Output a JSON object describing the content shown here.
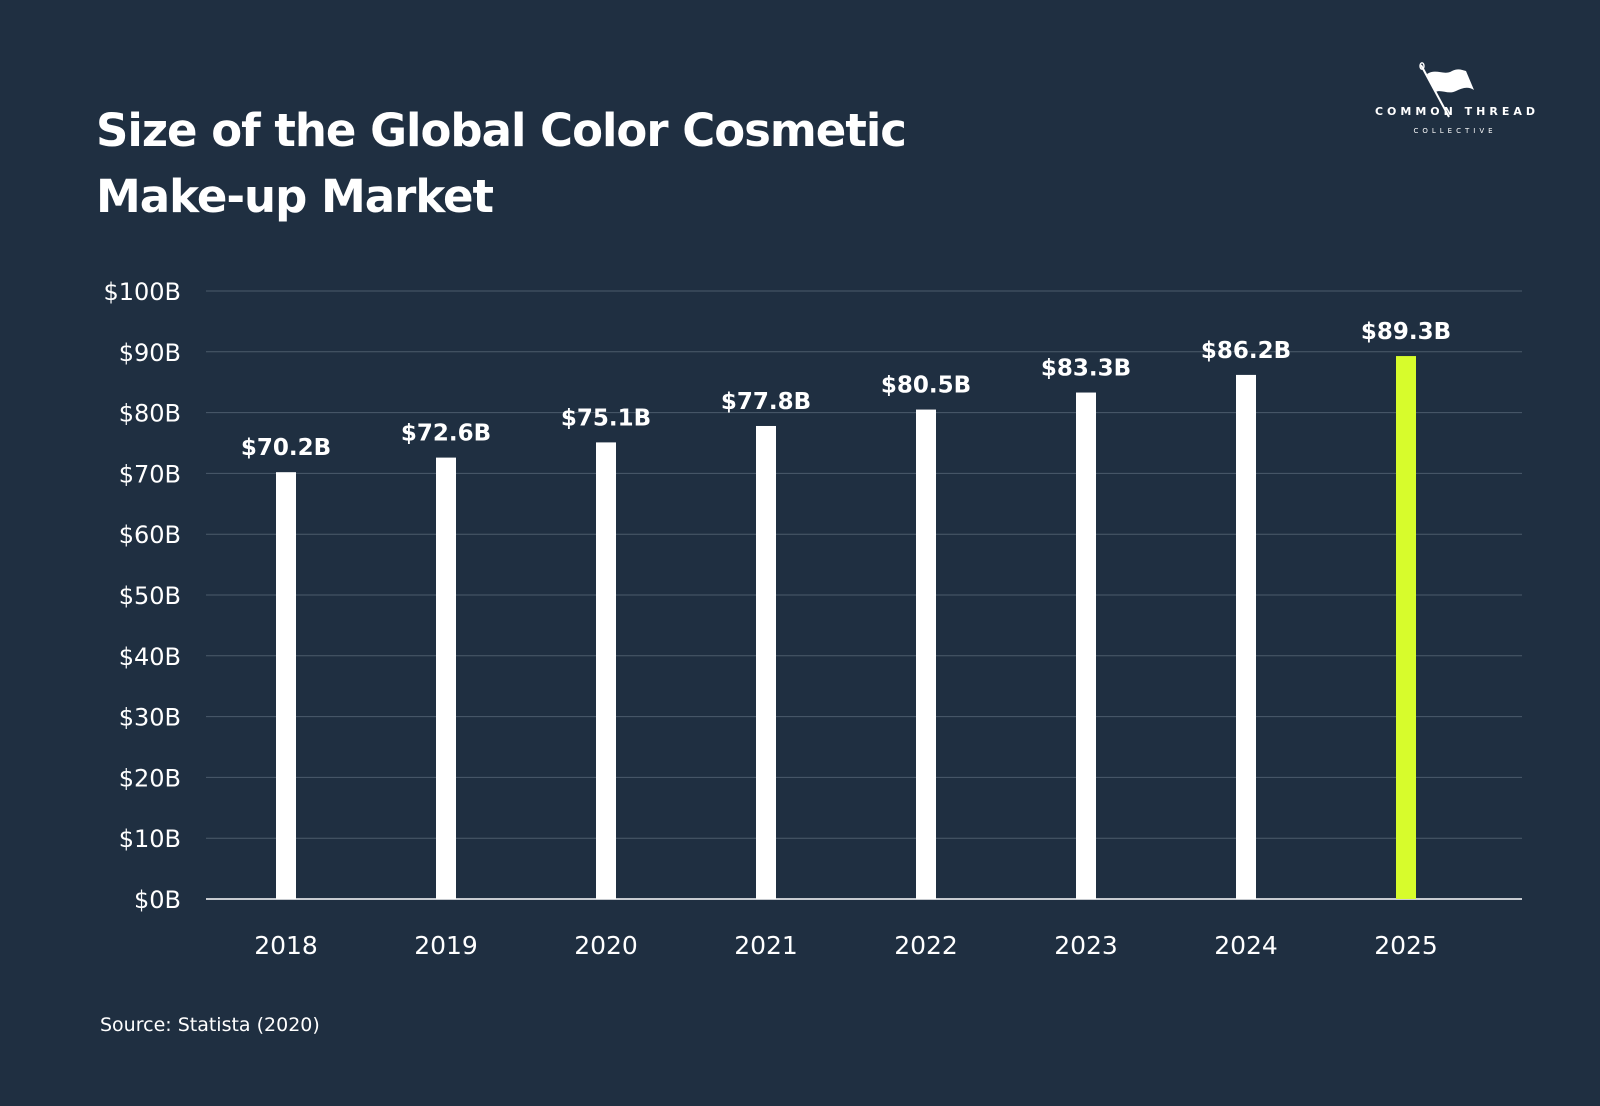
{
  "header": {
    "title_line1": "Size of the Global Color Cosmetic",
    "title_line2": "Make-up Market"
  },
  "brand": {
    "name": "COMMON THREAD",
    "sub": "COLLECTIVE",
    "icon": "flag-needle-icon"
  },
  "footer": {
    "source": "Source: Statista (2020)"
  },
  "colors": {
    "background": "#1f2f41",
    "bar": "#ffffff",
    "highlight": "#d7fc2c",
    "grid": "#4b5b6b",
    "text": "#ffffff"
  },
  "chart_data": {
    "type": "bar",
    "title": "Size of the Global Color Cosmetic Make-up Market",
    "xlabel": "",
    "ylabel": "",
    "categories": [
      "2018",
      "2019",
      "2020",
      "2021",
      "2022",
      "2023",
      "2024",
      "2025"
    ],
    "values": [
      70.2,
      72.6,
      75.1,
      77.8,
      80.5,
      83.3,
      86.2,
      89.3
    ],
    "value_labels": [
      "$70.2B",
      "$72.6B",
      "$75.1B",
      "$77.8B",
      "$80.5B",
      "$83.3B",
      "$86.2B",
      "$89.3B"
    ],
    "highlight_category": "2025",
    "ylim": [
      0,
      100
    ],
    "yticks": [
      0,
      10,
      20,
      30,
      40,
      50,
      60,
      70,
      80,
      90,
      100
    ],
    "ytick_labels": [
      "$0B",
      "$10B",
      "$20B",
      "$30B",
      "$40B",
      "$50B",
      "$60B",
      "$70B",
      "$80B",
      "$90B",
      "$100B"
    ],
    "grid": true,
    "legend": "none"
  }
}
